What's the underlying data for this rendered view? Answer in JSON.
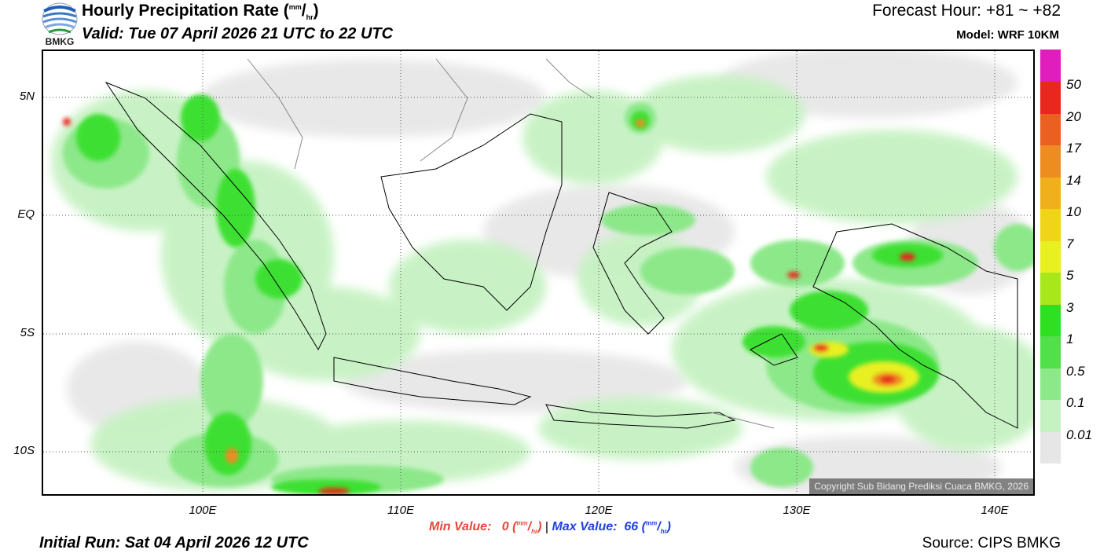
{
  "header": {
    "title": "Hourly Precipitation Rate (",
    "title_unit_top": "mm",
    "title_unit_bottom": "hr",
    "title_close": ")",
    "valid": "Valid: Tue 07 April 2026 21 UTC to 22 UTC",
    "forecast_hour": "Forecast Hour: +81 ~ +82",
    "model": "Model: WRF 10KM",
    "logo_text": "BMKG"
  },
  "map": {
    "lat_labels": [
      "5N",
      "EQ",
      "5S",
      "10S"
    ],
    "lon_labels": [
      "100E",
      "110E",
      "120E",
      "130E",
      "140E"
    ],
    "copyright": "Copyright Sub Bidang Prediksi Cuaca BMKG, 2026",
    "grid_lines": "dotted"
  },
  "colorbar": {
    "levels": [
      {
        "label": "0.01",
        "color": "#e6e6e6"
      },
      {
        "label": "0.1",
        "color": "#c6f2c2"
      },
      {
        "label": "0.5",
        "color": "#8de88a"
      },
      {
        "label": "1",
        "color": "#4fe04a"
      },
      {
        "label": "3",
        "color": "#2ee020"
      },
      {
        "label": "5",
        "color": "#a8e81a"
      },
      {
        "label": "7",
        "color": "#e8f020"
      },
      {
        "label": "10",
        "color": "#f0d418"
      },
      {
        "label": "14",
        "color": "#efb01c"
      },
      {
        "label": "17",
        "color": "#ee8c20"
      },
      {
        "label": "20",
        "color": "#ea6020"
      },
      {
        "label": "50",
        "color": "#e8281e"
      },
      {
        "label": "",
        "color": "#e01ebe"
      }
    ]
  },
  "footer": {
    "min_label": "Min Value:",
    "min_value": "0",
    "max_label": "Max Value:",
    "max_value": "66",
    "unit_top": "mm",
    "unit_bottom": "hr",
    "separator": "|",
    "initial_run": "Initial Run: Sat 04 April 2026 12 UTC",
    "source": "Source: CIPS BMKG"
  }
}
